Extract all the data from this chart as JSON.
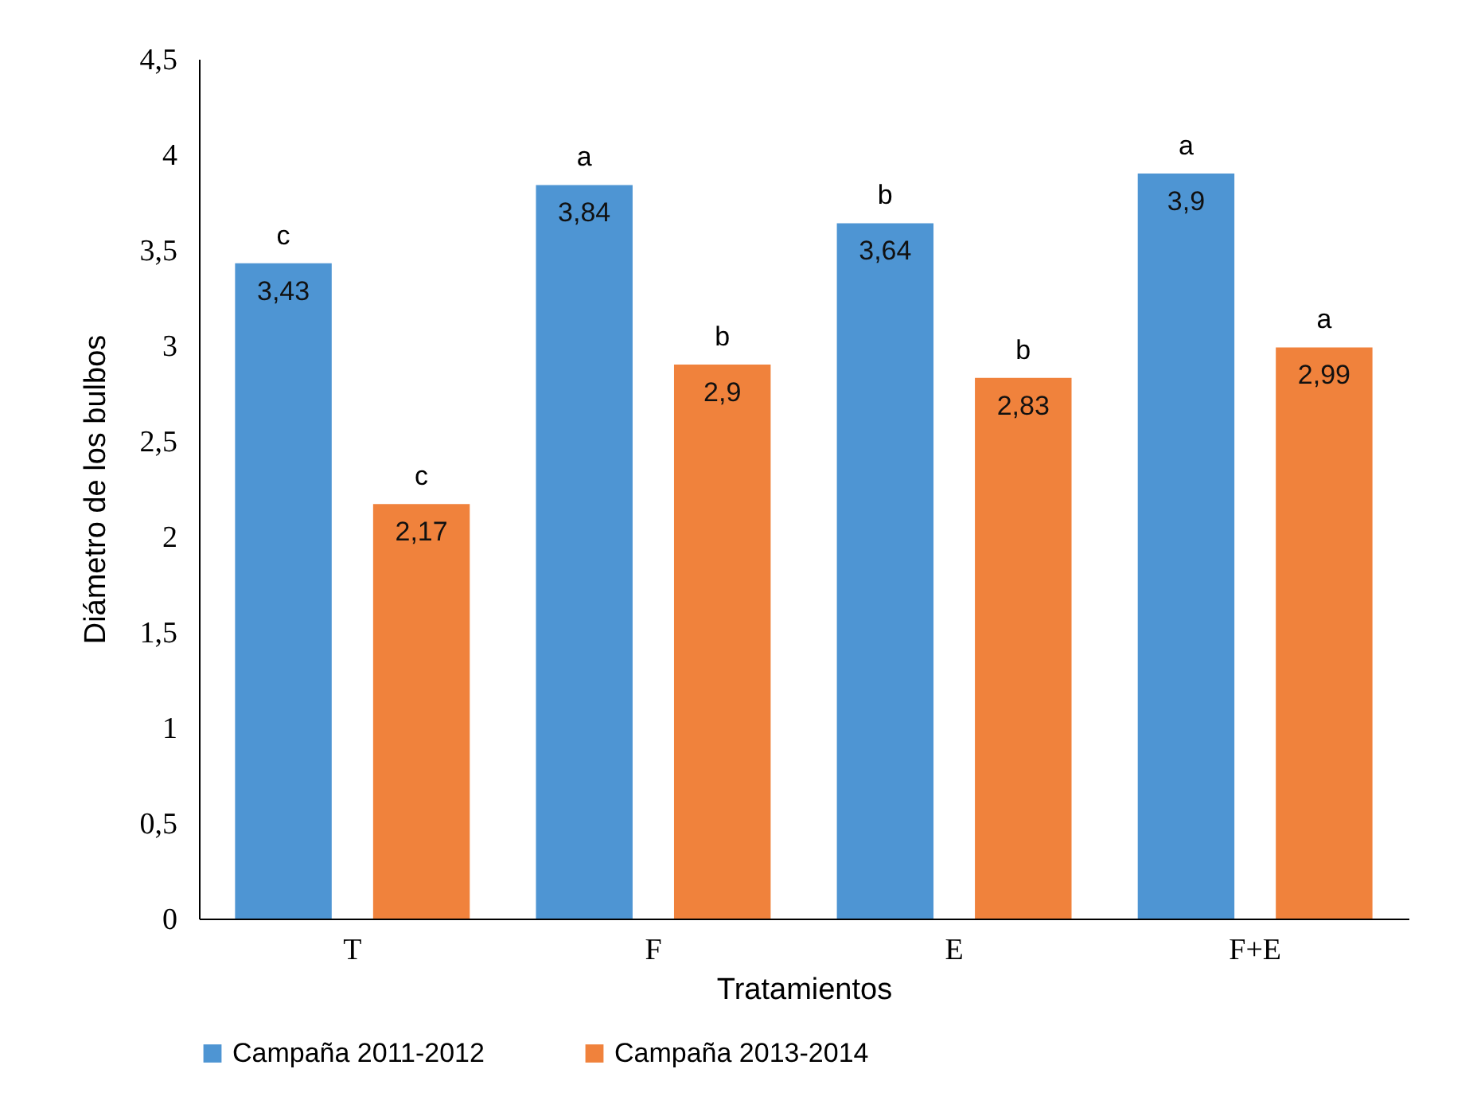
{
  "chart_data": {
    "type": "bar",
    "xlabel": "Tratamientos",
    "ylabel": "Diámetro de los bulbos",
    "categories": [
      "T",
      "F",
      "E",
      "F+E"
    ],
    "series": [
      {
        "name": "Campaña 2011-2012",
        "color": "#4e95d3",
        "values": [
          3.43,
          3.84,
          3.64,
          3.9
        ],
        "value_labels": [
          "3,43",
          "3,84",
          "3,64",
          "3,9"
        ]
      },
      {
        "name": "Campaña 2013-2014",
        "color": "#f0823c",
        "values": [
          2.17,
          2.9,
          2.83,
          2.99
        ],
        "value_labels": [
          "2,17",
          "2,9",
          "2,83",
          "2,99"
        ]
      }
    ],
    "ylim": [
      0,
      4.5
    ],
    "yticks": [
      0,
      {
        "value": 0.5,
        "label": "0,5"
      },
      1,
      {
        "value": 1.5,
        "label": "1,5"
      },
      2,
      {
        "value": 2.5,
        "label": "2,5"
      },
      3,
      {
        "value": 3.5,
        "label": "3,5"
      },
      4,
      {
        "value": 4.5,
        "label": "4,5"
      }
    ],
    "annotations": [
      "c",
      "c",
      "a",
      "b",
      "b",
      "b",
      "a",
      "a"
    ],
    "grid": false,
    "legend": "bottom"
  }
}
